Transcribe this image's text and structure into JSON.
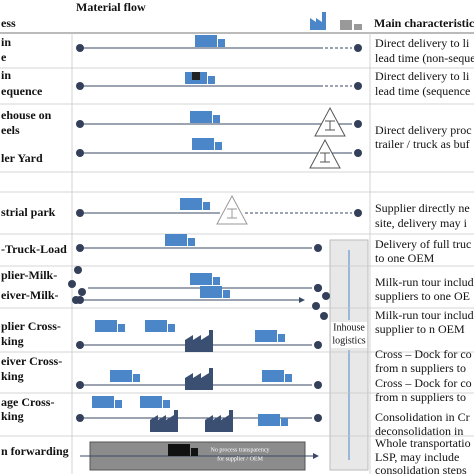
{
  "header": {
    "process": "ess",
    "material_flow": "Material flow",
    "main_characteristics": "Main characteristic"
  },
  "processes": [
    [
      "in",
      "e"
    ],
    [
      "in",
      "equence"
    ],
    [
      "ehouse on",
      "eels"
    ],
    [
      "ler Yard"
    ],
    [
      "strial park"
    ],
    [
      "-Truck-Load"
    ],
    [
      "plier-Milk-"
    ],
    [
      "eiver-Milk-"
    ],
    [
      "plier Cross-",
      "king"
    ],
    [
      "eiver Cross-",
      "king"
    ],
    [
      "age Cross-",
      "king"
    ],
    [
      "n forwarding"
    ]
  ],
  "characteristics": [
    [
      "Direct delivery to li",
      "lead time (non-seque"
    ],
    [
      "Direct delivery to li",
      "lead time (sequence"
    ],
    [
      "Direct delivery proc",
      "trailer / truck as buf"
    ],
    [
      "Supplier directly ne",
      "site, delivery may i"
    ],
    [
      "Delivery of full truc",
      "to one OEM"
    ],
    [
      "Milk-run tour include",
      "suppliers to one OE"
    ],
    [
      "Milk-run tour include",
      "supplier to n OEM"
    ],
    [
      "Cross – Dock for co",
      "from n suppliers to"
    ],
    [
      "Cross – Dock for co",
      "from n suppliers to"
    ],
    [
      "Consolidation in Cr",
      "deconsolidation in"
    ],
    [
      "Whole transportatio",
      "LSP, may include",
      "consolidation steps"
    ]
  ],
  "inhouse": [
    "Inhouse",
    "logistics"
  ],
  "banner": [
    "No process transparency",
    "for supplier / OEM"
  ]
}
